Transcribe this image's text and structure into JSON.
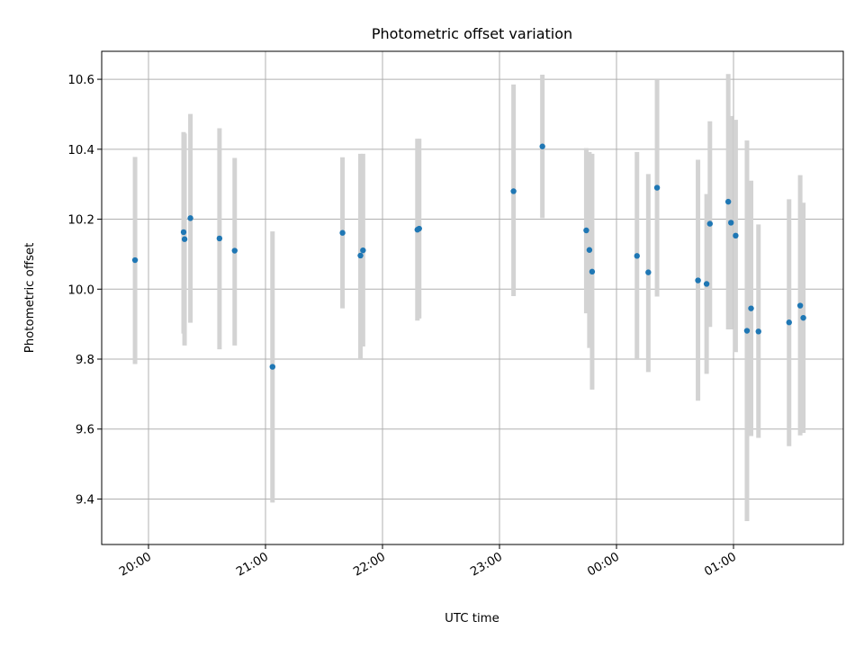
{
  "chart_data": {
    "type": "scatter",
    "title": "Photometric offset variation",
    "xlabel": "UTC time",
    "ylabel": "Photometric offset",
    "x_ticks": [
      "20:00",
      "21:00",
      "22:00",
      "23:00",
      "00:00",
      "01:00"
    ],
    "x_tick_minutes": [
      1200,
      1260,
      1320,
      1380,
      1440,
      1500
    ],
    "xlim_minutes": [
      1176.0,
      1556.3
    ],
    "y_ticks": [
      "9.4",
      "9.6",
      "9.8",
      "10.0",
      "10.2",
      "10.4",
      "10.6"
    ],
    "y_tick_values": [
      9.4,
      9.6,
      9.8,
      10.0,
      10.2,
      10.4,
      10.6
    ],
    "ylim": [
      9.27,
      10.68
    ],
    "grid": true,
    "marker_color": "#1f77b4",
    "errorbar_color": "#d3d3d3",
    "series": [
      {
        "points": [
          {
            "t": 1193.1,
            "y": 10.083,
            "lo": 9.786,
            "hi": 10.378
          },
          {
            "t": 1218.0,
            "y": 10.163,
            "lo": 9.873,
            "hi": 10.449
          },
          {
            "t": 1218.5,
            "y": 10.143,
            "lo": 9.839,
            "hi": 10.445
          },
          {
            "t": 1221.5,
            "y": 10.203,
            "lo": 9.904,
            "hi": 10.501
          },
          {
            "t": 1236.4,
            "y": 10.145,
            "lo": 9.828,
            "hi": 10.46
          },
          {
            "t": 1244.2,
            "y": 10.11,
            "lo": 9.839,
            "hi": 10.375
          },
          {
            "t": 1263.6,
            "y": 9.778,
            "lo": 9.39,
            "hi": 10.165
          },
          {
            "t": 1299.5,
            "y": 10.161,
            "lo": 9.945,
            "hi": 10.377
          },
          {
            "t": 1308.7,
            "y": 10.096,
            "lo": 9.8,
            "hi": 10.387
          },
          {
            "t": 1310.0,
            "y": 10.111,
            "lo": 9.836,
            "hi": 10.387
          },
          {
            "t": 1337.9,
            "y": 10.17,
            "lo": 9.91,
            "hi": 10.43
          },
          {
            "t": 1338.8,
            "y": 10.173,
            "lo": 9.916,
            "hi": 10.43
          },
          {
            "t": 1387.2,
            "y": 10.28,
            "lo": 9.98,
            "hi": 10.585
          },
          {
            "t": 1402.0,
            "y": 10.408,
            "lo": 10.203,
            "hi": 10.613
          },
          {
            "t": 1424.5,
            "y": 10.168,
            "lo": 9.931,
            "hi": 10.403
          },
          {
            "t": 1426.1,
            "y": 10.112,
            "lo": 9.832,
            "hi": 10.392
          },
          {
            "t": 1427.5,
            "y": 10.05,
            "lo": 9.713,
            "hi": 10.387
          },
          {
            "t": 1450.5,
            "y": 10.095,
            "lo": 9.8,
            "hi": 10.392
          },
          {
            "t": 1456.3,
            "y": 10.048,
            "lo": 9.763,
            "hi": 10.329
          },
          {
            "t": 1460.8,
            "y": 10.29,
            "lo": 9.979,
            "hi": 10.6
          },
          {
            "t": 1481.8,
            "y": 10.025,
            "lo": 9.681,
            "hi": 10.37
          },
          {
            "t": 1486.2,
            "y": 10.015,
            "lo": 9.758,
            "hi": 10.272
          },
          {
            "t": 1487.9,
            "y": 10.187,
            "lo": 9.892,
            "hi": 10.48
          },
          {
            "t": 1497.3,
            "y": 10.25,
            "lo": 9.885,
            "hi": 10.615
          },
          {
            "t": 1498.7,
            "y": 10.19,
            "lo": 9.885,
            "hi": 10.495
          },
          {
            "t": 1501.1,
            "y": 10.153,
            "lo": 9.82,
            "hi": 10.484
          },
          {
            "t": 1506.9,
            "y": 9.881,
            "lo": 9.337,
            "hi": 10.425
          },
          {
            "t": 1509.0,
            "y": 9.945,
            "lo": 9.58,
            "hi": 10.31
          },
          {
            "t": 1512.8,
            "y": 9.879,
            "lo": 9.575,
            "hi": 10.185
          },
          {
            "t": 1528.5,
            "y": 9.905,
            "lo": 9.551,
            "hi": 10.257
          },
          {
            "t": 1534.2,
            "y": 9.953,
            "lo": 9.582,
            "hi": 10.326
          },
          {
            "t": 1535.8,
            "y": 9.918,
            "lo": 9.589,
            "hi": 10.247
          }
        ]
      }
    ]
  }
}
